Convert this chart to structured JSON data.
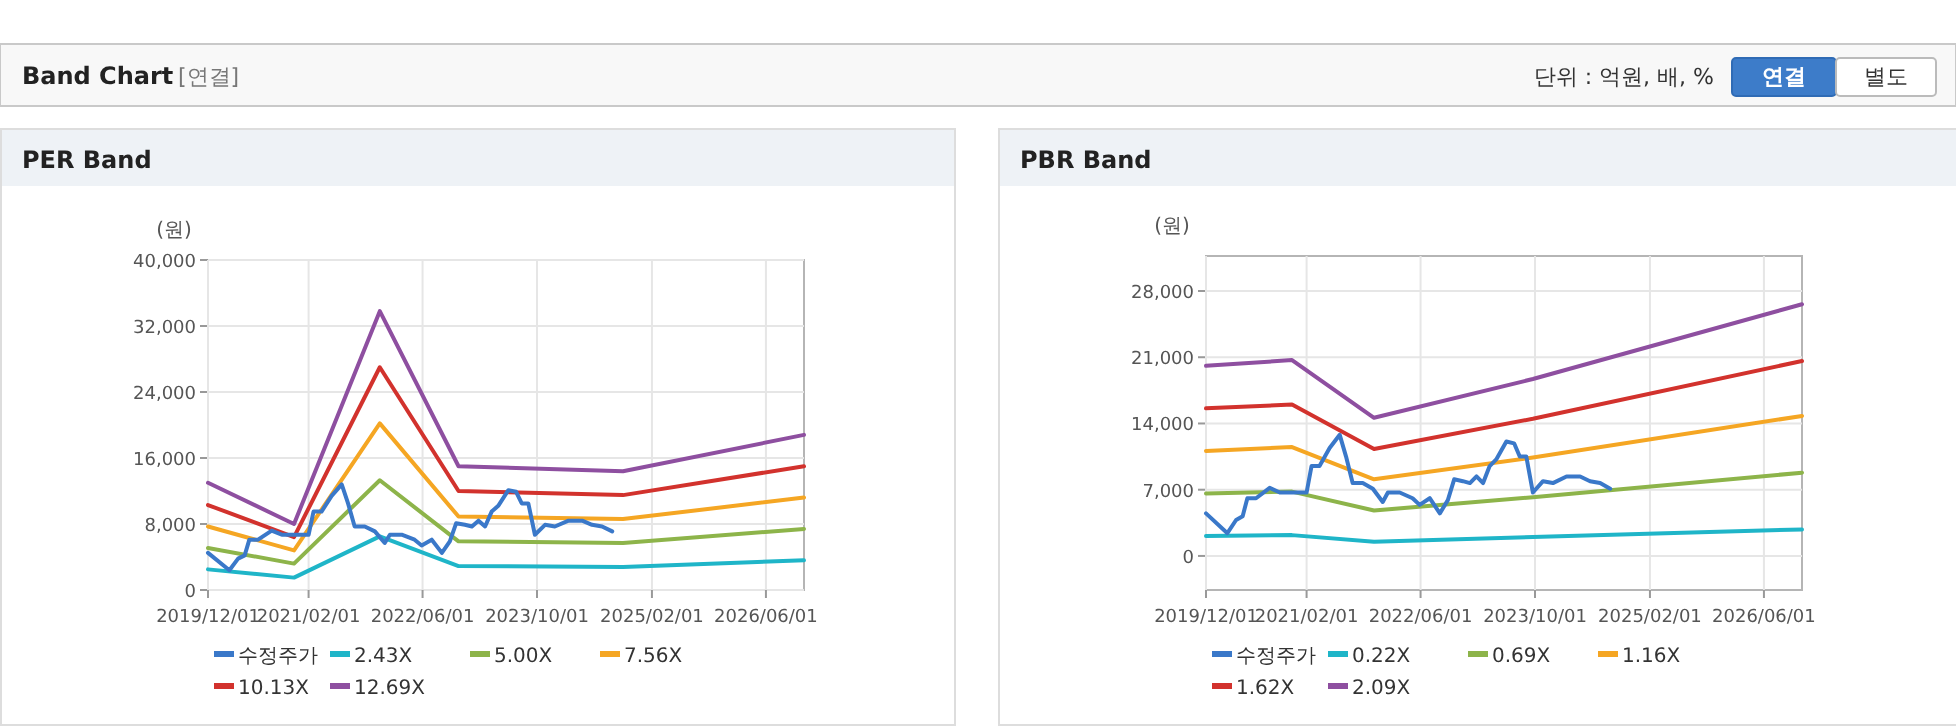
{
  "chart_data": [
    {
      "type": "line",
      "title": "PER Band",
      "ylabel": "(원)",
      "annotations": [
        "Band Chart",
        "[연결]",
        "단위 : 억원, 배, %",
        "연결",
        "별도"
      ],
      "xlim": [
        "2019-12-01",
        "2026-11-10"
      ],
      "xticks": [
        {
          "value": "2019-12-01",
          "label": "2019/12/01"
        },
        {
          "value": "2021-02-01",
          "label": "2021/02/01"
        },
        {
          "value": "2022-06-01",
          "label": "2022/06/01"
        },
        {
          "value": "2023-10-01",
          "label": "2023/10/01"
        },
        {
          "value": "2025-02-01",
          "label": "2025/02/01"
        },
        {
          "value": "2026-06-01",
          "label": "2026/06/01"
        }
      ],
      "ylim": [
        0,
        40000
      ],
      "yticks": [
        {
          "value": 0,
          "label": "0"
        },
        {
          "value": 8000,
          "label": "8,000"
        },
        {
          "value": 16000,
          "label": "16,000"
        },
        {
          "value": 24000,
          "label": "24,000"
        },
        {
          "value": 32000,
          "label": "32,000"
        },
        {
          "value": 40000,
          "label": "40,000"
        }
      ],
      "grid": true,
      "legend": "bottom",
      "marker": "none",
      "line_style": "solid",
      "series": [
        {
          "name": "수정주가",
          "color": "#3a78c9",
          "x": [
            "2019-12-01",
            "2020-03-01",
            "2020-04-07",
            "2020-05-05",
            "2020-05-25",
            "2020-07-01",
            "2020-08-28",
            "2020-10-10",
            "2020-12-04",
            "2021-02-01",
            "2021-02-22",
            "2021-03-28",
            "2021-05-10",
            "2021-06-22",
            "2021-07-19",
            "2021-08-16",
            "2021-09-28",
            "2021-11-10",
            "2021-12-22",
            "2022-01-13",
            "2022-03-04",
            "2022-04-28",
            "2022-05-28",
            "2022-07-10",
            "2022-08-22",
            "2022-09-25",
            "2022-10-22",
            "2022-11-28",
            "2022-12-28",
            "2023-01-25",
            "2023-02-22",
            "2023-03-22",
            "2023-04-19",
            "2023-06-01",
            "2023-07-04",
            "2023-07-28",
            "2023-08-25",
            "2023-09-22",
            "2023-11-04",
            "2023-12-16",
            "2024-02-12",
            "2024-04-10",
            "2024-05-22",
            "2024-07-04",
            "2024-08-16"
          ],
          "values": [
            4500,
            2400,
            3800,
            4200,
            6100,
            6100,
            7200,
            6700,
            6700,
            6700,
            9500,
            9500,
            11400,
            12800,
            10500,
            7700,
            7700,
            7100,
            5700,
            6700,
            6700,
            6100,
            5400,
            6100,
            4500,
            5900,
            8100,
            7900,
            7700,
            8400,
            7700,
            9500,
            10200,
            12100,
            11900,
            10500,
            10500,
            6700,
            7900,
            7700,
            8400,
            8400,
            7900,
            7700,
            7100
          ]
        },
        {
          "name": "2.43X",
          "color": "#1fb5c8",
          "x": [
            "2019-12-01",
            "2020-12-01",
            "2021-12-01",
            "2022-11-01",
            "2024-10-01",
            "2026-11-10"
          ],
          "values": [
            2500,
            1500,
            6500,
            2900,
            2800,
            3600
          ]
        },
        {
          "name": "5.00X",
          "color": "#8db44a",
          "x": [
            "2019-12-01",
            "2020-12-01",
            "2021-12-01",
            "2022-11-01",
            "2024-10-01",
            "2026-11-10"
          ],
          "values": [
            5100,
            3200,
            13300,
            5900,
            5700,
            7400
          ]
        },
        {
          "name": "7.56X",
          "color": "#f5a623",
          "x": [
            "2019-12-01",
            "2020-12-01",
            "2021-12-01",
            "2022-11-01",
            "2024-10-01",
            "2026-11-10"
          ],
          "values": [
            7700,
            4800,
            20200,
            8900,
            8600,
            11200
          ]
        },
        {
          "name": "10.13X",
          "color": "#d2322d",
          "x": [
            "2019-12-01",
            "2020-12-01",
            "2021-12-01",
            "2022-11-01",
            "2024-10-01",
            "2026-11-10"
          ],
          "values": [
            10300,
            6400,
            27000,
            12000,
            11500,
            15000
          ]
        },
        {
          "name": "12.69X",
          "color": "#8e4fa0",
          "x": [
            "2019-12-01",
            "2020-12-01",
            "2021-12-01",
            "2022-11-01",
            "2024-10-01",
            "2026-11-10"
          ],
          "values": [
            13000,
            8000,
            33800,
            15000,
            14400,
            18800
          ]
        }
      ]
    },
    {
      "type": "line",
      "title": "PBR Band",
      "ylabel": "(원)",
      "xlim": [
        "2019-12-01",
        "2026-11-10"
      ],
      "xticks": [
        {
          "value": "2019-12-01",
          "label": "2019/12/01"
        },
        {
          "value": "2021-02-01",
          "label": "2021/02/01"
        },
        {
          "value": "2022-06-01",
          "label": "2022/06/01"
        },
        {
          "value": "2023-10-01",
          "label": "2023/10/01"
        },
        {
          "value": "2025-02-01",
          "label": "2025/02/01"
        },
        {
          "value": "2026-06-01",
          "label": "2026/06/01"
        }
      ],
      "ylim": [
        -3600,
        31700
      ],
      "yticks": [
        {
          "value": 0,
          "label": "0"
        },
        {
          "value": 7000,
          "label": "7,000"
        },
        {
          "value": 14000,
          "label": "14,000"
        },
        {
          "value": 21000,
          "label": "21,000"
        },
        {
          "value": 28000,
          "label": "28,000"
        }
      ],
      "grid": true,
      "legend": "bottom",
      "marker": "none",
      "line_style": "solid",
      "series": [
        {
          "name": "수정주가",
          "color": "#3a78c9",
          "x": [
            "2019-12-01",
            "2020-03-01",
            "2020-04-07",
            "2020-05-05",
            "2020-05-25",
            "2020-07-01",
            "2020-08-28",
            "2020-10-10",
            "2020-12-04",
            "2021-02-01",
            "2021-02-22",
            "2021-03-28",
            "2021-05-10",
            "2021-06-22",
            "2021-07-19",
            "2021-08-16",
            "2021-09-28",
            "2021-11-10",
            "2021-12-22",
            "2022-01-13",
            "2022-03-04",
            "2022-04-28",
            "2022-05-28",
            "2022-07-10",
            "2022-08-22",
            "2022-09-25",
            "2022-10-22",
            "2022-11-28",
            "2022-12-28",
            "2023-01-25",
            "2023-02-22",
            "2023-03-22",
            "2023-04-19",
            "2023-06-01",
            "2023-07-04",
            "2023-07-28",
            "2023-08-25",
            "2023-09-22",
            "2023-11-04",
            "2023-12-16",
            "2024-02-12",
            "2024-04-10",
            "2024-05-22",
            "2024-07-04",
            "2024-08-16"
          ],
          "values": [
            4500,
            2400,
            3800,
            4200,
            6100,
            6100,
            7200,
            6700,
            6700,
            6700,
            9500,
            9500,
            11400,
            12800,
            10500,
            7700,
            7700,
            7100,
            5700,
            6700,
            6700,
            6100,
            5400,
            6100,
            4500,
            5900,
            8100,
            7900,
            7700,
            8400,
            7700,
            9500,
            10200,
            12100,
            11900,
            10500,
            10500,
            6700,
            7900,
            7700,
            8400,
            8400,
            7900,
            7700,
            7100
          ]
        },
        {
          "name": "0.22X",
          "color": "#1fb5c8",
          "x": [
            "2019-12-01",
            "2020-12-01",
            "2021-11-15",
            "2023-09-22",
            "2026-11-10"
          ],
          "values": [
            2100,
            2200,
            1500,
            2000,
            2800
          ]
        },
        {
          "name": "0.69X",
          "color": "#8db44a",
          "x": [
            "2019-12-01",
            "2020-12-01",
            "2021-11-15",
            "2023-09-22",
            "2026-11-10"
          ],
          "values": [
            6600,
            6800,
            4800,
            6200,
            8800
          ]
        },
        {
          "name": "1.16X",
          "color": "#f5a623",
          "x": [
            "2019-12-01",
            "2020-12-01",
            "2021-11-15",
            "2023-09-22",
            "2026-11-10"
          ],
          "values": [
            11100,
            11500,
            8100,
            10400,
            14800
          ]
        },
        {
          "name": "1.62X",
          "color": "#d2322d",
          "x": [
            "2019-12-01",
            "2020-12-01",
            "2021-11-15",
            "2023-09-22",
            "2026-11-10"
          ],
          "values": [
            15600,
            16000,
            11300,
            14500,
            20600
          ]
        },
        {
          "name": "2.09X",
          "color": "#8e4fa0",
          "x": [
            "2019-12-01",
            "2020-12-01",
            "2021-11-15",
            "2023-09-22",
            "2026-11-10"
          ],
          "values": [
            20100,
            20700,
            14600,
            18700,
            26600
          ]
        }
      ]
    }
  ]
}
